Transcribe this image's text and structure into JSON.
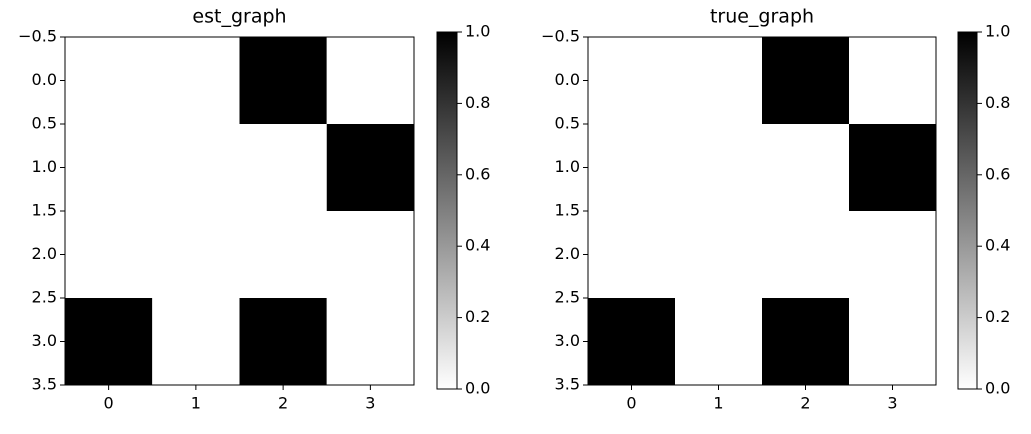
{
  "chart_data": [
    {
      "type": "heatmap",
      "title": "est_graph",
      "z": [
        [
          0,
          0,
          1,
          0
        ],
        [
          0,
          0,
          0,
          1
        ],
        [
          0,
          0,
          0,
          0
        ],
        [
          1,
          0,
          1,
          0
        ]
      ],
      "colormap": "gray_r",
      "xlim": [
        -0.5,
        3.5
      ],
      "ylim": [
        -0.5,
        3.5
      ],
      "y_inverted": true,
      "xticks": [
        0,
        1,
        2,
        3
      ],
      "yticks": [
        {
          "value": -0.5,
          "label": "−0.5"
        },
        {
          "value": 0,
          "label": "0.0"
        },
        0.5,
        {
          "value": 1,
          "label": "1.0"
        },
        1.5,
        {
          "value": 2,
          "label": "2.0"
        },
        2.5,
        {
          "value": 3,
          "label": "3.0"
        },
        3.5
      ],
      "clim": [
        0,
        1
      ],
      "cticks": [
        {
          "value": 0,
          "label": "0.0"
        },
        0.2,
        0.4,
        0.6,
        0.8,
        {
          "value": 1,
          "label": "1.0"
        }
      ]
    },
    {
      "type": "heatmap",
      "title": "true_graph",
      "z": [
        [
          0,
          0,
          1,
          0
        ],
        [
          0,
          0,
          0,
          1
        ],
        [
          0,
          0,
          0,
          0
        ],
        [
          1,
          0,
          1,
          0
        ]
      ],
      "colormap": "gray_r",
      "xlim": [
        -0.5,
        3.5
      ],
      "ylim": [
        -0.5,
        3.5
      ],
      "y_inverted": true,
      "xticks": [
        0,
        1,
        2,
        3
      ],
      "yticks": [
        {
          "value": -0.5,
          "label": "−0.5"
        },
        {
          "value": 0,
          "label": "0.0"
        },
        0.5,
        {
          "value": 1,
          "label": "1.0"
        },
        1.5,
        {
          "value": 2,
          "label": "2.0"
        },
        2.5,
        {
          "value": 3,
          "label": "3.0"
        },
        3.5
      ],
      "clim": [
        0,
        1
      ],
      "cticks": [
        {
          "value": 0,
          "label": "0.0"
        },
        0.2,
        0.4,
        0.6,
        0.8,
        {
          "value": 1,
          "label": "1.0"
        }
      ]
    }
  ]
}
